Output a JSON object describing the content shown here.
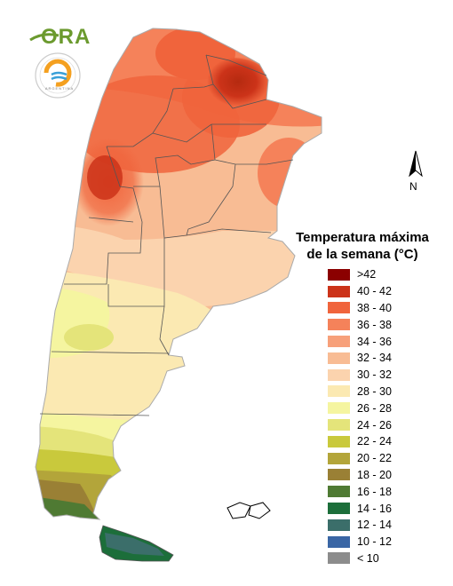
{
  "logo": {
    "text": "ORA",
    "seal_lower_text": "ARGENTINA",
    "seal_upper_text": "SERVICIO METEOROLÓGICO NACIONAL"
  },
  "north_arrow": {
    "label": "N",
    "icon": "north-arrow-icon"
  },
  "legend": {
    "title_line1": "Temperatura máxima",
    "title_line2": "de la semana (°C)",
    "items": [
      {
        "label": ">42",
        "color": "#8b0000"
      },
      {
        "label": "40 - 42",
        "color": "#cc3319"
      },
      {
        "label": "38 - 40",
        "color": "#f0643c"
      },
      {
        "label": "36 - 38",
        "color": "#f5825a"
      },
      {
        "label": "34 - 36",
        "color": "#f7a07a"
      },
      {
        "label": "32 - 34",
        "color": "#f8bc94"
      },
      {
        "label": "30 - 32",
        "color": "#fbd3ae"
      },
      {
        "label": "28 - 30",
        "color": "#fbe9b2"
      },
      {
        "label": "26 - 28",
        "color": "#f5f5a0"
      },
      {
        "label": "24 - 26",
        "color": "#e4e47a"
      },
      {
        "label": "22 - 24",
        "color": "#c9c93c"
      },
      {
        "label": "20 - 22",
        "color": "#b3a53a"
      },
      {
        "label": "18 - 20",
        "color": "#9a8035"
      },
      {
        "label": "16 - 18",
        "color": "#4f7a33"
      },
      {
        "label": "14 - 16",
        "color": "#1c6e3a"
      },
      {
        "label": "12 - 14",
        "color": "#3b6e6a"
      },
      {
        "label": "10 - 12",
        "color": "#3a66a5"
      },
      {
        "label": "< 10",
        "color": "#8c8c8c"
      }
    ]
  }
}
